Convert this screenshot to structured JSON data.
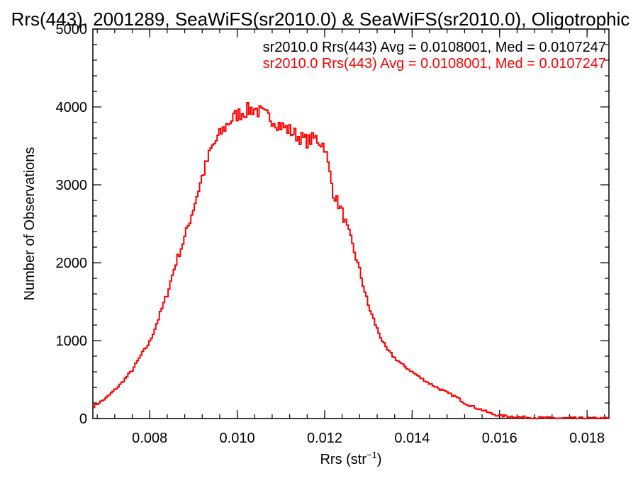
{
  "chart_data": {
    "type": "line",
    "title": "Rrs(443), 2001289, SeaWiFS(sr2010.0) & SeaWiFS(sr2010.0), Oligotrophic",
    "xlabel_main": "Rrs (str",
    "xlabel_sup": "−1",
    "xlabel_tail": ")",
    "ylabel": "Number of Observations",
    "xlim": [
      0.0067,
      0.0185
    ],
    "ylim": [
      0,
      5000
    ],
    "grid": false,
    "x_ticks": [
      0.008,
      0.01,
      0.012,
      0.014,
      0.016,
      0.018
    ],
    "x_tick_labels": [
      "0.008",
      "0.010",
      "0.012",
      "0.014",
      "0.016",
      "0.018"
    ],
    "y_ticks": [
      0,
      1000,
      2000,
      3000,
      4000,
      5000
    ],
    "y_tick_labels": [
      "0",
      "1000",
      "2000",
      "3000",
      "4000",
      "5000"
    ],
    "annotations": [
      {
        "text": "sr2010.0 Rrs(443) Avg = 0.0108001, Med = 0.0107247",
        "color": "#000000"
      },
      {
        "text": "sr2010.0 Rrs(443) Avg = 0.0108001, Med = 0.0107247",
        "color": "#ff0000"
      }
    ],
    "series": [
      {
        "color": "#ff0000",
        "style": "step",
        "x": [
          0.0067,
          0.007,
          0.0073,
          0.0076,
          0.0078,
          0.008,
          0.0082,
          0.0084,
          0.0086,
          0.0088,
          0.009,
          0.0092,
          0.0094,
          0.0096,
          0.0098,
          0.01,
          0.0102,
          0.0104,
          0.0106,
          0.0108,
          0.011,
          0.0112,
          0.0114,
          0.0116,
          0.0118,
          0.012,
          0.0122,
          0.0124,
          0.0126,
          0.0128,
          0.013,
          0.0132,
          0.0134,
          0.0136,
          0.0138,
          0.014,
          0.0142,
          0.0144,
          0.0146,
          0.0148,
          0.015,
          0.0152,
          0.0154,
          0.0156,
          0.0158,
          0.016,
          0.0162,
          0.0164,
          0.0166,
          0.0168,
          0.017,
          0.0172,
          0.0174,
          0.0176,
          0.0178,
          0.018,
          0.0182,
          0.0185
        ],
        "y": [
          150,
          260,
          420,
          620,
          810,
          980,
          1280,
          1600,
          2000,
          2320,
          2700,
          3100,
          3450,
          3640,
          3800,
          3900,
          3950,
          3980,
          3900,
          3850,
          3760,
          3700,
          3620,
          3560,
          3600,
          3500,
          2900,
          2650,
          2300,
          1900,
          1450,
          1150,
          900,
          780,
          680,
          600,
          520,
          450,
          390,
          330,
          280,
          200,
          150,
          110,
          65,
          35,
          30,
          20,
          15,
          10,
          8,
          6,
          5,
          4,
          3,
          3,
          2,
          2
        ]
      }
    ]
  }
}
